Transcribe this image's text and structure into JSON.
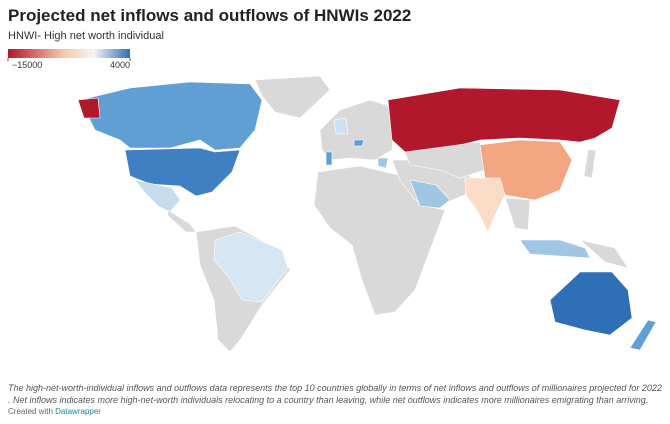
{
  "header": {
    "title": "Projected net inflows and outflows of HNWIs 2022",
    "subtitle": "HNWI- High net worth individual"
  },
  "legend": {
    "min": {
      "value": -15000,
      "label": "−15000"
    },
    "max": 4000,
    "min_color": "#b2182b",
    "max_color": "#2f6fb5"
  },
  "footer": {
    "note": "The high-net-worth-individual inflows and outflows data represents the top 10 countries globally in terms of net inflows and outflows of millionaires projected for 2022 . Net inflows indicates more high-net-worth individuals relocating to a country than leaving, while net outflows indicates more millionaires emigrating than arriving.",
    "credit_prefix": "Created with",
    "credit_link": "Datawrapper"
  }
}
